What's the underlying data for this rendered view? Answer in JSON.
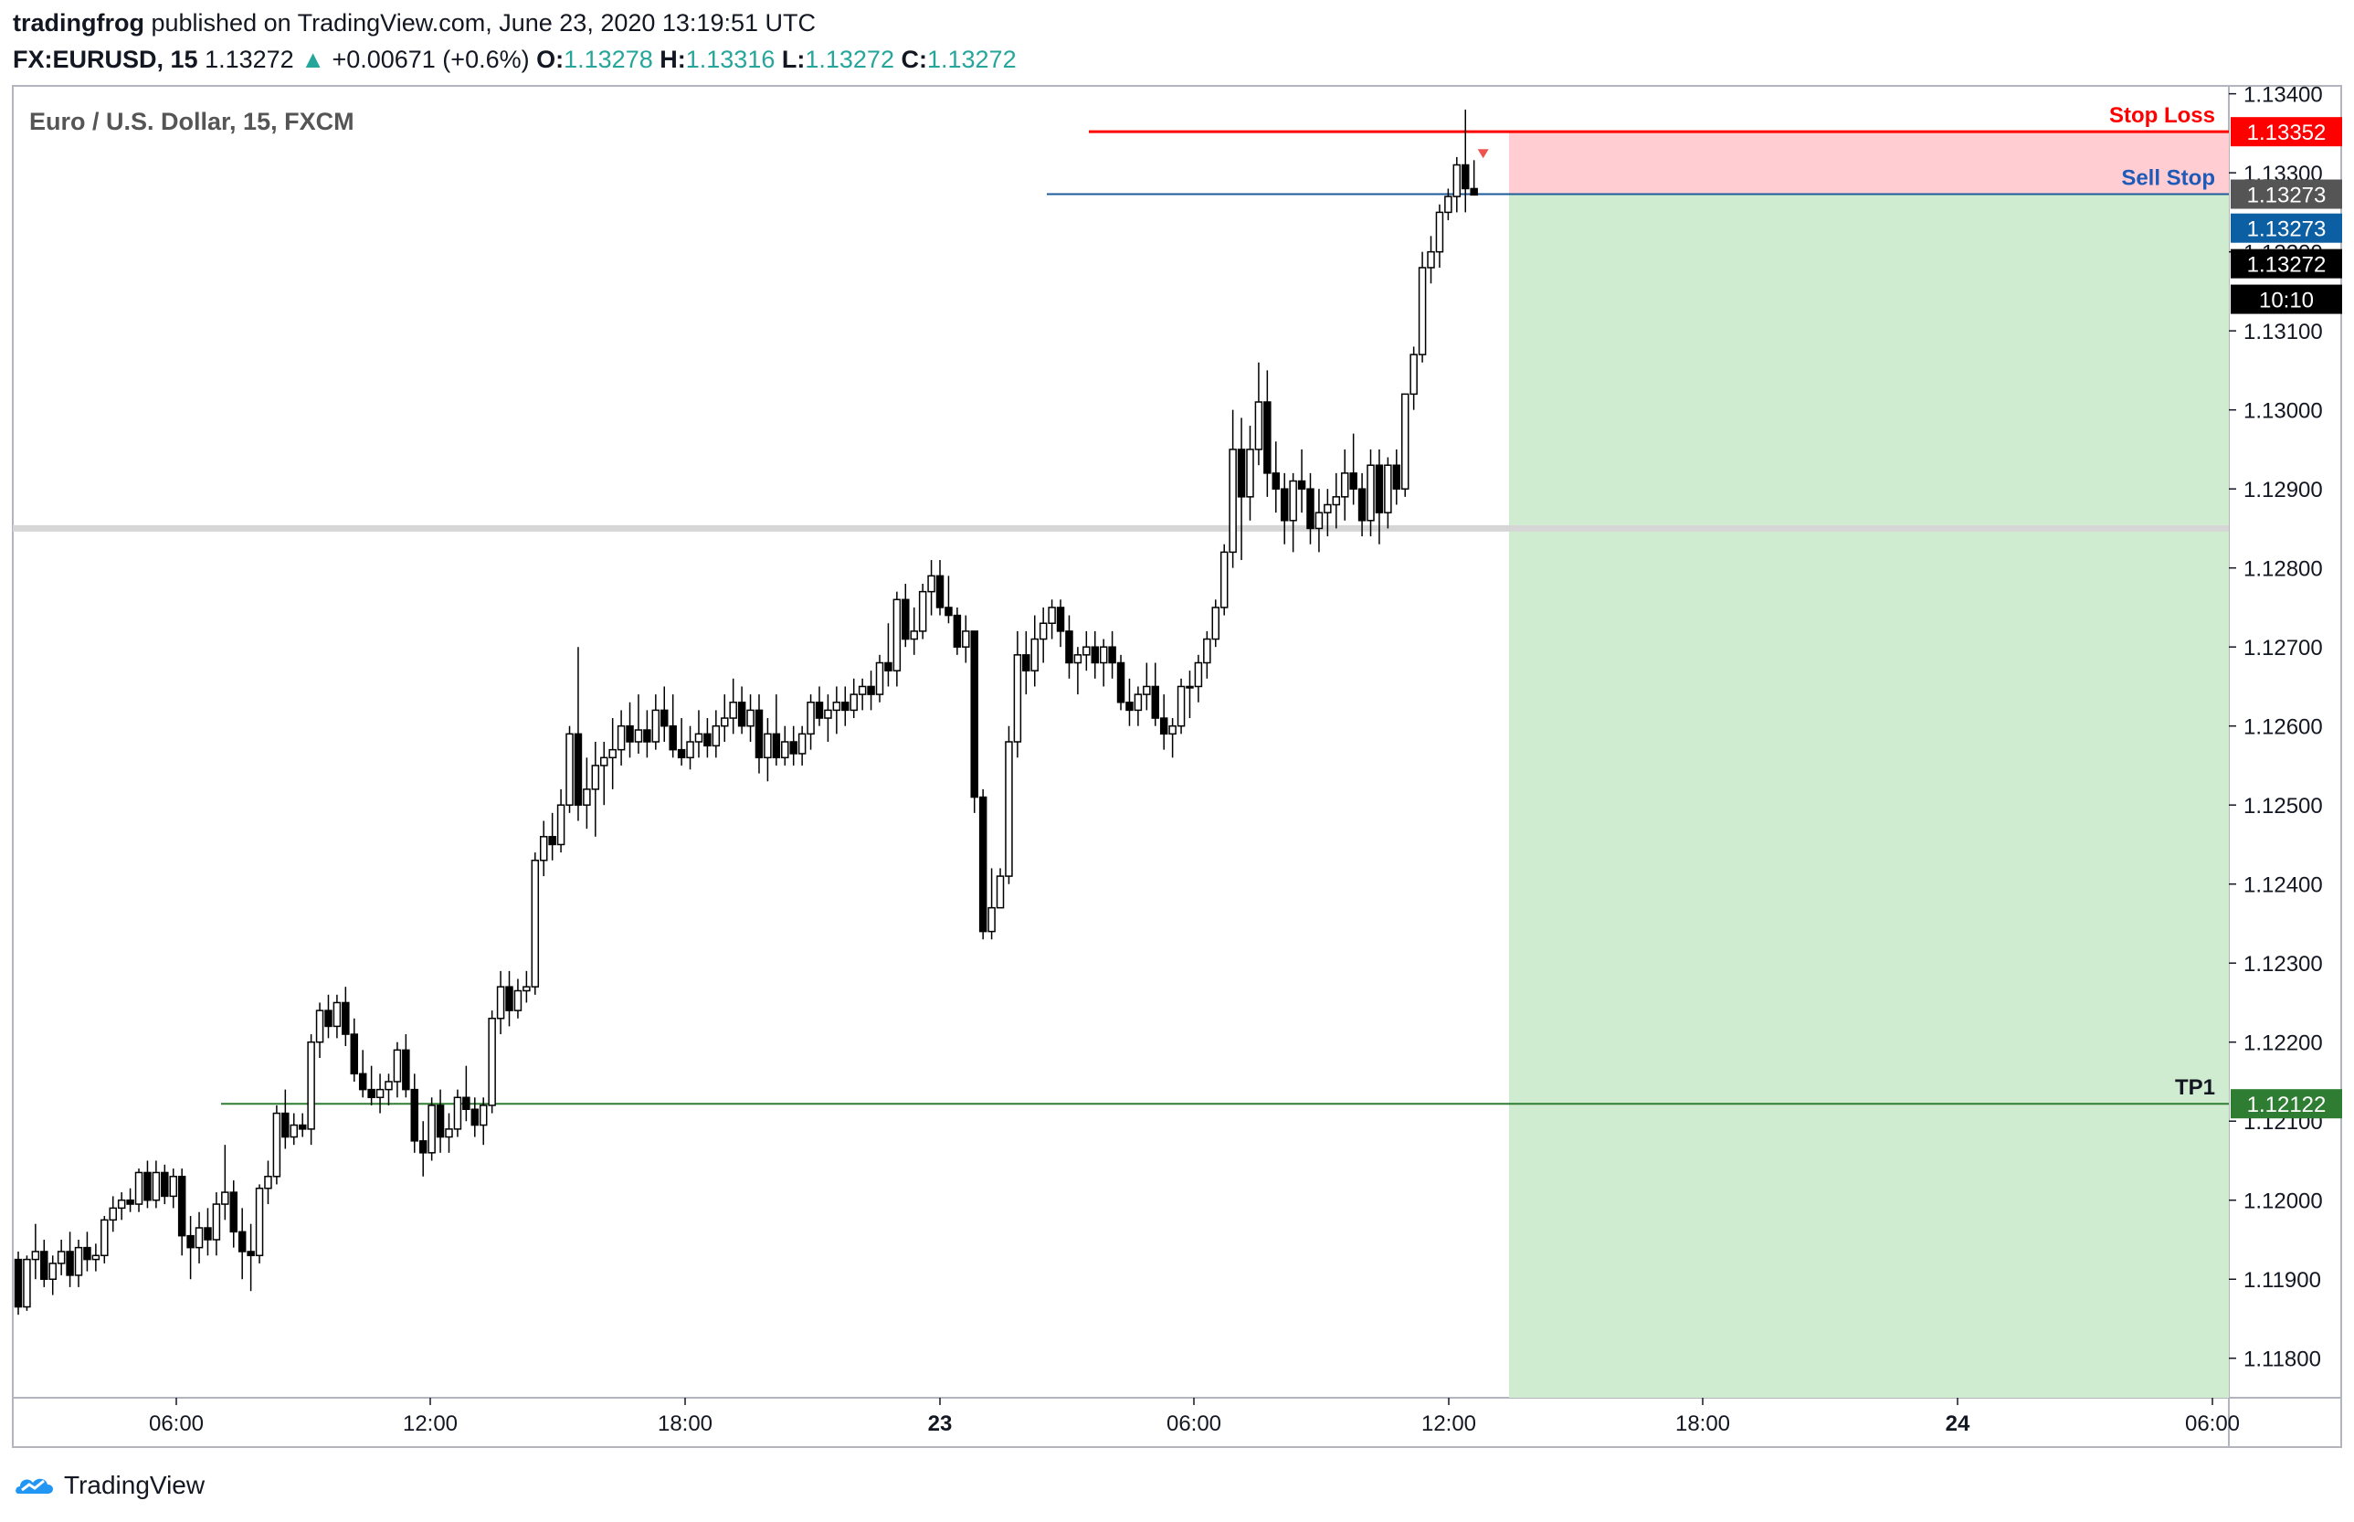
{
  "header": {
    "author": "tradingfrog",
    "published_text": "published on TradingView.com, June 23, 2020 13:19:51 UTC",
    "symbol": "FX:EURUSD, 15",
    "last": "1.13272",
    "change_arrow": "▲",
    "change": "+0.00671 (+0.6%)",
    "o_label": "O:",
    "o": "1.13278",
    "h_label": "H:",
    "h": "1.13316",
    "l_label": "L:",
    "l": "1.13272",
    "c_label": "C:",
    "c": "1.13272"
  },
  "chart_title": "Euro / U.S. Dollar, 15, FXCM",
  "footer": {
    "brand": "TradingView",
    "logo_icon": "tradingview-logo-icon"
  },
  "colors": {
    "up": "#ffffff",
    "down": "#000000",
    "wick": "#000000",
    "stop_loss": "#ff0000",
    "sell_stop": "#1e5b99",
    "tp": "#2e7d32",
    "risk_zone": "#ffcdd2",
    "reward_zone": "#d0ecd0",
    "support": "#d6d6d6",
    "axis_dark": "#555555",
    "axis_black": "#000000",
    "axis_blue": "#0d5fa3",
    "axis_green": "#2e7d32"
  },
  "chart_data": {
    "type": "candlestick",
    "title": "Euro / U.S. Dollar, 15, FXCM",
    "ylim": [
      1.1175,
      1.1341
    ],
    "y_ticks": [
      "1.11800",
      "1.11900",
      "1.12000",
      "1.12100",
      "1.12200",
      "1.12300",
      "1.12400",
      "1.12500",
      "1.12600",
      "1.12700",
      "1.12800",
      "1.12900",
      "1.13000",
      "1.13100",
      "1.13200",
      "1.13300",
      "1.13400"
    ],
    "x_ticks": [
      "06:00",
      "12:00",
      "18:00",
      "23",
      "06:00",
      "12:00",
      "18:00",
      "24",
      "06:00"
    ],
    "x_tick_bold": [
      false,
      false,
      false,
      true,
      false,
      false,
      false,
      true,
      false
    ],
    "levels": [
      {
        "name": "Stop Loss",
        "price": 1.13352,
        "label": "1.13352"
      },
      {
        "name": "Sell Stop",
        "price": 1.13273,
        "label": "1.13273"
      },
      {
        "name": "TP1",
        "price": 1.12122,
        "label": "1.12122"
      }
    ],
    "support_level": 1.1285,
    "axis_labels": [
      {
        "text": "1.13273",
        "price": 1.13273,
        "style": "dark"
      },
      {
        "text": "1.13273",
        "price": 1.1323,
        "style": "blue"
      },
      {
        "text": "1.13272",
        "price": 1.13185,
        "style": "black"
      },
      {
        "text": "10:10",
        "price": 1.1314,
        "style": "black"
      }
    ],
    "candles_ohlc": [
      [
        1.11925,
        1.11935,
        1.11855,
        1.11865
      ],
      [
        1.11865,
        1.1193,
        1.1186,
        1.11925
      ],
      [
        1.11925,
        1.1197,
        1.119,
        1.11935
      ],
      [
        1.11935,
        1.1195,
        1.1189,
        1.119
      ],
      [
        1.119,
        1.1193,
        1.1188,
        1.1192
      ],
      [
        1.1192,
        1.1195,
        1.11905,
        1.11935
      ],
      [
        1.11935,
        1.1196,
        1.1189,
        1.11905
      ],
      [
        1.11905,
        1.1195,
        1.1189,
        1.1194
      ],
      [
        1.1194,
        1.1196,
        1.1191,
        1.11925
      ],
      [
        1.11925,
        1.11945,
        1.1191,
        1.1193
      ],
      [
        1.1193,
        1.1198,
        1.1192,
        1.11975
      ],
      [
        1.11975,
        1.12005,
        1.1196,
        1.1199
      ],
      [
        1.1199,
        1.1201,
        1.11975,
        1.12
      ],
      [
        1.12,
        1.12015,
        1.11985,
        1.11995
      ],
      [
        1.11995,
        1.1204,
        1.11985,
        1.12035
      ],
      [
        1.12035,
        1.1205,
        1.1199,
        1.12
      ],
      [
        1.12,
        1.1205,
        1.1199,
        1.12035
      ],
      [
        1.12035,
        1.12045,
        1.11995,
        1.12005
      ],
      [
        1.12005,
        1.1204,
        1.1199,
        1.1203
      ],
      [
        1.1203,
        1.1204,
        1.1193,
        1.11955
      ],
      [
        1.11955,
        1.1198,
        1.119,
        1.1194
      ],
      [
        1.1194,
        1.11985,
        1.1192,
        1.11965
      ],
      [
        1.11965,
        1.1199,
        1.1193,
        1.1195
      ],
      [
        1.1195,
        1.1201,
        1.1193,
        1.11995
      ],
      [
        1.11995,
        1.1207,
        1.11975,
        1.1201
      ],
      [
        1.1201,
        1.12025,
        1.1194,
        1.1196
      ],
      [
        1.1196,
        1.1199,
        1.119,
        1.11935
      ],
      [
        1.11935,
        1.1197,
        1.11885,
        1.1193
      ],
      [
        1.1193,
        1.1202,
        1.1192,
        1.12015
      ],
      [
        1.12015,
        1.1205,
        1.11995,
        1.1203
      ],
      [
        1.1203,
        1.1212,
        1.1202,
        1.1211
      ],
      [
        1.1211,
        1.1214,
        1.12065,
        1.1208
      ],
      [
        1.1208,
        1.1211,
        1.1207,
        1.12095
      ],
      [
        1.12095,
        1.1211,
        1.1208,
        1.1209
      ],
      [
        1.1209,
        1.1221,
        1.1207,
        1.122
      ],
      [
        1.122,
        1.1225,
        1.1218,
        1.1224
      ],
      [
        1.1224,
        1.1226,
        1.12205,
        1.1222
      ],
      [
        1.1222,
        1.1226,
        1.12205,
        1.1225
      ],
      [
        1.1225,
        1.1227,
        1.12195,
        1.1221
      ],
      [
        1.1221,
        1.1223,
        1.1215,
        1.1216
      ],
      [
        1.1216,
        1.1219,
        1.1213,
        1.1214
      ],
      [
        1.1214,
        1.1217,
        1.1212,
        1.1213
      ],
      [
        1.1213,
        1.1216,
        1.1211,
        1.1214
      ],
      [
        1.1214,
        1.1216,
        1.1212,
        1.1215
      ],
      [
        1.1215,
        1.122,
        1.1213,
        1.1219
      ],
      [
        1.1219,
        1.1221,
        1.1213,
        1.1214
      ],
      [
        1.1214,
        1.1216,
        1.1206,
        1.12075
      ],
      [
        1.12075,
        1.121,
        1.1203,
        1.1206
      ],
      [
        1.1206,
        1.1213,
        1.1205,
        1.1212
      ],
      [
        1.1212,
        1.1214,
        1.1206,
        1.1208
      ],
      [
        1.1208,
        1.1211,
        1.1206,
        1.1209
      ],
      [
        1.1209,
        1.1214,
        1.1208,
        1.1213
      ],
      [
        1.1213,
        1.1217,
        1.121,
        1.12115
      ],
      [
        1.12115,
        1.1213,
        1.1208,
        1.12095
      ],
      [
        1.12095,
        1.1213,
        1.1207,
        1.1212
      ],
      [
        1.1212,
        1.1224,
        1.1211,
        1.1223
      ],
      [
        1.1223,
        1.1229,
        1.1221,
        1.1227
      ],
      [
        1.1227,
        1.1229,
        1.1222,
        1.1224
      ],
      [
        1.1224,
        1.1228,
        1.1223,
        1.12265
      ],
      [
        1.12265,
        1.1229,
        1.1225,
        1.1227
      ],
      [
        1.1227,
        1.1244,
        1.1226,
        1.1243
      ],
      [
        1.1243,
        1.1248,
        1.1241,
        1.1246
      ],
      [
        1.1246,
        1.1249,
        1.1243,
        1.1245
      ],
      [
        1.1245,
        1.1252,
        1.1244,
        1.125
      ],
      [
        1.125,
        1.126,
        1.1249,
        1.1259
      ],
      [
        1.1259,
        1.127,
        1.1248,
        1.125
      ],
      [
        1.125,
        1.1256,
        1.1247,
        1.1252
      ],
      [
        1.1252,
        1.1258,
        1.1246,
        1.1255
      ],
      [
        1.1255,
        1.1258,
        1.125,
        1.1256
      ],
      [
        1.1256,
        1.1261,
        1.1252,
        1.1257
      ],
      [
        1.1257,
        1.1262,
        1.1255,
        1.126
      ],
      [
        1.126,
        1.1263,
        1.1256,
        1.1258
      ],
      [
        1.1258,
        1.1264,
        1.12565,
        1.12595
      ],
      [
        1.12595,
        1.1262,
        1.1256,
        1.1258
      ],
      [
        1.1258,
        1.1264,
        1.1257,
        1.1262
      ],
      [
        1.1262,
        1.1265,
        1.1258,
        1.126
      ],
      [
        1.126,
        1.1264,
        1.1256,
        1.1257
      ],
      [
        1.1257,
        1.1261,
        1.1255,
        1.1256
      ],
      [
        1.1256,
        1.126,
        1.12545,
        1.1258
      ],
      [
        1.1258,
        1.1262,
        1.1256,
        1.1259
      ],
      [
        1.1259,
        1.1261,
        1.1256,
        1.12575
      ],
      [
        1.12575,
        1.1262,
        1.1256,
        1.126
      ],
      [
        1.126,
        1.1264,
        1.1258,
        1.1261
      ],
      [
        1.1261,
        1.1266,
        1.1259,
        1.1263
      ],
      [
        1.1263,
        1.1265,
        1.1259,
        1.126
      ],
      [
        1.126,
        1.1264,
        1.1258,
        1.1262
      ],
      [
        1.1262,
        1.1264,
        1.1254,
        1.1256
      ],
      [
        1.1256,
        1.1261,
        1.1253,
        1.1259
      ],
      [
        1.1259,
        1.1264,
        1.1255,
        1.1256
      ],
      [
        1.1256,
        1.126,
        1.1255,
        1.1258
      ],
      [
        1.1258,
        1.126,
        1.1255,
        1.12565
      ],
      [
        1.12565,
        1.126,
        1.1255,
        1.1259
      ],
      [
        1.1259,
        1.1264,
        1.1257,
        1.1263
      ],
      [
        1.1263,
        1.1265,
        1.126,
        1.1261
      ],
      [
        1.1261,
        1.1264,
        1.1258,
        1.1262
      ],
      [
        1.1262,
        1.1265,
        1.1259,
        1.1263
      ],
      [
        1.1263,
        1.1265,
        1.126,
        1.1262
      ],
      [
        1.1262,
        1.1266,
        1.1261,
        1.1264
      ],
      [
        1.1264,
        1.1266,
        1.1262,
        1.1265
      ],
      [
        1.1265,
        1.1267,
        1.1262,
        1.1264
      ],
      [
        1.1264,
        1.1269,
        1.1263,
        1.1268
      ],
      [
        1.1268,
        1.1273,
        1.1265,
        1.1267
      ],
      [
        1.1267,
        1.1277,
        1.1265,
        1.1276
      ],
      [
        1.1276,
        1.1278,
        1.127,
        1.1271
      ],
      [
        1.1271,
        1.1275,
        1.1269,
        1.1272
      ],
      [
        1.1272,
        1.1278,
        1.1271,
        1.1277
      ],
      [
        1.1277,
        1.1281,
        1.1274,
        1.1279
      ],
      [
        1.1279,
        1.1281,
        1.1274,
        1.1275
      ],
      [
        1.1275,
        1.1279,
        1.1273,
        1.1274
      ],
      [
        1.1274,
        1.1275,
        1.1269,
        1.127
      ],
      [
        1.127,
        1.1274,
        1.1268,
        1.1272
      ],
      [
        1.1272,
        1.1272,
        1.1249,
        1.1251
      ],
      [
        1.1251,
        1.1252,
        1.1233,
        1.1234
      ],
      [
        1.1234,
        1.1242,
        1.1233,
        1.1237
      ],
      [
        1.1237,
        1.1242,
        1.1237,
        1.1241
      ],
      [
        1.1241,
        1.126,
        1.124,
        1.1258
      ],
      [
        1.1258,
        1.1272,
        1.1256,
        1.1269
      ],
      [
        1.1269,
        1.1272,
        1.1264,
        1.1267
      ],
      [
        1.1267,
        1.1274,
        1.1265,
        1.1271
      ],
      [
        1.1271,
        1.1275,
        1.1268,
        1.1273
      ],
      [
        1.1273,
        1.1276,
        1.1271,
        1.1275
      ],
      [
        1.1275,
        1.1276,
        1.127,
        1.1272
      ],
      [
        1.1272,
        1.1274,
        1.1266,
        1.1268
      ],
      [
        1.1268,
        1.127,
        1.1264,
        1.1269
      ],
      [
        1.1269,
        1.1272,
        1.1267,
        1.127
      ],
      [
        1.127,
        1.1272,
        1.1266,
        1.1268
      ],
      [
        1.1268,
        1.1271,
        1.1265,
        1.127
      ],
      [
        1.127,
        1.1272,
        1.1266,
        1.1268
      ],
      [
        1.1268,
        1.1269,
        1.1262,
        1.1263
      ],
      [
        1.1263,
        1.1266,
        1.126,
        1.1262
      ],
      [
        1.1262,
        1.1265,
        1.126,
        1.1264
      ],
      [
        1.1264,
        1.1268,
        1.1262,
        1.1265
      ],
      [
        1.1265,
        1.1268,
        1.126,
        1.1261
      ],
      [
        1.1261,
        1.1264,
        1.1257,
        1.1259
      ],
      [
        1.1259,
        1.1261,
        1.1256,
        1.126
      ],
      [
        1.126,
        1.1266,
        1.1259,
        1.1265
      ],
      [
        1.1265,
        1.1267,
        1.1261,
        1.1265
      ],
      [
        1.1265,
        1.1269,
        1.1263,
        1.1268
      ],
      [
        1.1268,
        1.1272,
        1.1266,
        1.1271
      ],
      [
        1.1271,
        1.1276,
        1.127,
        1.1275
      ],
      [
        1.1275,
        1.1283,
        1.1274,
        1.1282
      ],
      [
        1.1282,
        1.13,
        1.128,
        1.1295
      ],
      [
        1.1295,
        1.1299,
        1.1281,
        1.1289
      ],
      [
        1.1289,
        1.1298,
        1.1286,
        1.1295
      ],
      [
        1.1295,
        1.1306,
        1.1293,
        1.1301
      ],
      [
        1.1301,
        1.1305,
        1.1289,
        1.1292
      ],
      [
        1.1292,
        1.1296,
        1.1287,
        1.129
      ],
      [
        1.129,
        1.1292,
        1.1283,
        1.1286
      ],
      [
        1.1286,
        1.1292,
        1.1282,
        1.1291
      ],
      [
        1.1291,
        1.1295,
        1.1287,
        1.129
      ],
      [
        1.129,
        1.1292,
        1.1283,
        1.1285
      ],
      [
        1.1285,
        1.129,
        1.1282,
        1.1287
      ],
      [
        1.1287,
        1.129,
        1.1284,
        1.1288
      ],
      [
        1.1288,
        1.1292,
        1.1285,
        1.1289
      ],
      [
        1.1289,
        1.1295,
        1.1286,
        1.1292
      ],
      [
        1.1292,
        1.1297,
        1.1288,
        1.129
      ],
      [
        1.129,
        1.1292,
        1.1284,
        1.1286
      ],
      [
        1.1286,
        1.1295,
        1.1284,
        1.1293
      ],
      [
        1.1293,
        1.1295,
        1.1283,
        1.1287
      ],
      [
        1.1287,
        1.1294,
        1.1285,
        1.1293
      ],
      [
        1.1293,
        1.1295,
        1.1288,
        1.129
      ],
      [
        1.129,
        1.1302,
        1.1289,
        1.1302
      ],
      [
        1.1302,
        1.1308,
        1.13,
        1.1307
      ],
      [
        1.1307,
        1.132,
        1.1306,
        1.1318
      ],
      [
        1.1318,
        1.1322,
        1.1316,
        1.132
      ],
      [
        1.132,
        1.1326,
        1.1318,
        1.1325
      ],
      [
        1.1325,
        1.1328,
        1.1324,
        1.1327
      ],
      [
        1.1327,
        1.1332,
        1.1325,
        1.1331
      ],
      [
        1.1331,
        1.1338,
        1.1325,
        1.1328
      ],
      [
        1.1328,
        1.13316,
        1.13272,
        1.13272
      ]
    ]
  }
}
